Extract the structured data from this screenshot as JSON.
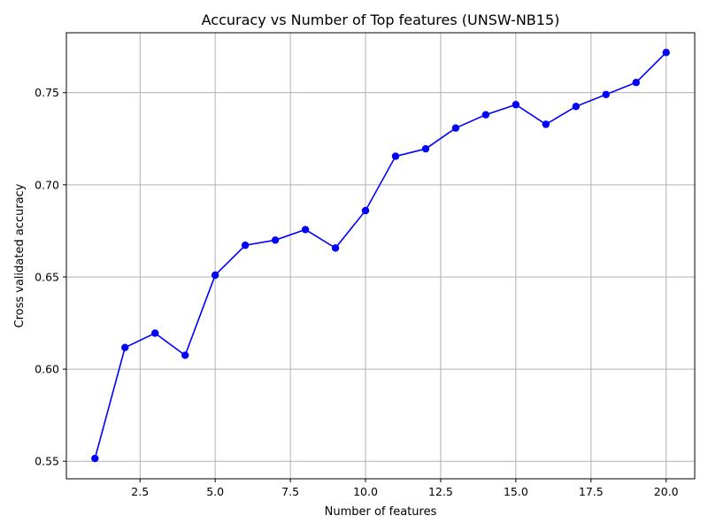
{
  "chart_data": {
    "type": "line",
    "title": "Accuracy vs Number of Top features (UNSW-NB15)",
    "xlabel": "Number of features",
    "ylabel": "Cross validated accuracy",
    "xlim": [
      0.05,
      20.95
    ],
    "ylim": [
      0.5405,
      0.7825
    ],
    "xticks": [
      2.5,
      5.0,
      7.5,
      10.0,
      12.5,
      15.0,
      17.5,
      20.0
    ],
    "xtick_labels": [
      "2.5",
      "5.0",
      "7.5",
      "10.0",
      "12.5",
      "15.0",
      "17.5",
      "20.0"
    ],
    "yticks": [
      0.55,
      0.6,
      0.65,
      0.7,
      0.75
    ],
    "ytick_labels": [
      "0.55",
      "0.60",
      "0.65",
      "0.70",
      "0.75"
    ],
    "grid": true,
    "series": [
      {
        "color": "#0000ff",
        "marker": "circle",
        "x": [
          1,
          2,
          3,
          4,
          5,
          6,
          7,
          8,
          9,
          10,
          11,
          12,
          13,
          14,
          15,
          16,
          17,
          18,
          19,
          20
        ],
        "y": [
          0.5515,
          0.6117,
          0.6195,
          0.6075,
          0.651,
          0.6672,
          0.67,
          0.6757,
          0.6657,
          0.686,
          0.7155,
          0.7195,
          0.7308,
          0.738,
          0.7435,
          0.7328,
          0.7425,
          0.749,
          0.7555,
          0.7718
        ]
      }
    ]
  }
}
